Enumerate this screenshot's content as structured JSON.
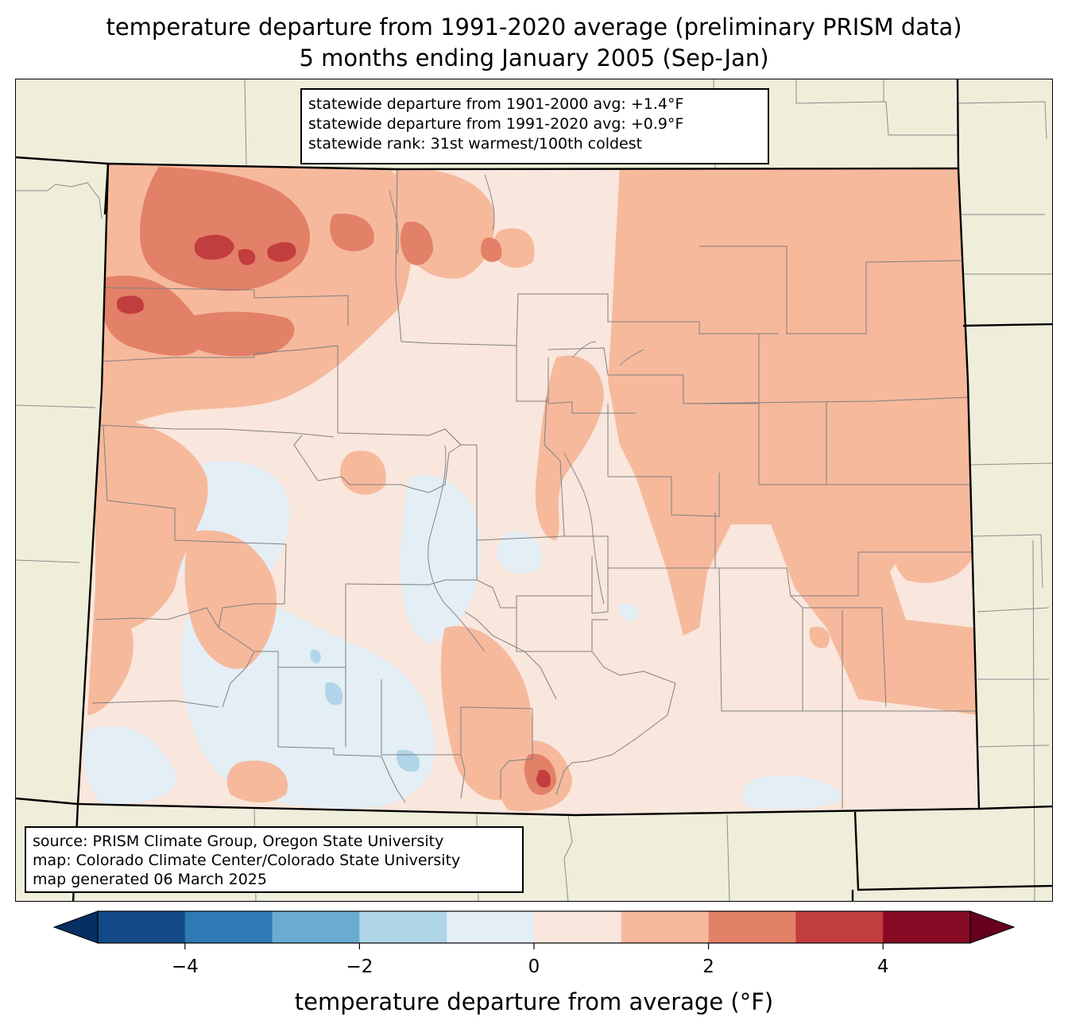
{
  "title": {
    "line1": "temperature departure from 1991-2020 average (preliminary PRISM data)",
    "line2": "5 months ending January 2005 (Sep-Jan)"
  },
  "stats": {
    "line1": "statewide departure from 1901-2000 avg: +1.4°F",
    "line2": "statewide departure from 1991-2020 avg: +0.9°F",
    "line3": "statewide rank: 31st warmest/100th coldest"
  },
  "source": {
    "line1": "source: PRISM Climate Group, Oregon State University",
    "line2": "map: Colorado Climate Center/Colorado State University",
    "line3": "map generated 06 March 2025"
  },
  "colors": {
    "land": "#efeedb",
    "state_base": "#f9e6dc",
    "county_lines": "#808080",
    "state_border": "#000000"
  },
  "colorbar": {
    "label": "temperature departure from average (°F)",
    "ticks": [
      "−4",
      "−2",
      "0",
      "2",
      "4"
    ],
    "bins": [
      {
        "from": -5,
        "to": -4,
        "color": "#144a87"
      },
      {
        "from": -4,
        "to": -3,
        "color": "#2f79b5"
      },
      {
        "from": -3,
        "to": -2,
        "color": "#6aacd0"
      },
      {
        "from": -2,
        "to": -1,
        "color": "#b0d5e8"
      },
      {
        "from": -1,
        "to": 0,
        "color": "#e4eef5"
      },
      {
        "from": 0,
        "to": 1,
        "color": "#f9e6dc"
      },
      {
        "from": 1,
        "to": 2,
        "color": "#f6b99c"
      },
      {
        "from": 2,
        "to": 3,
        "color": "#e38068"
      },
      {
        "from": 3,
        "to": 4,
        "color": "#c23d3e"
      },
      {
        "from": 4,
        "to": 5,
        "color": "#870a24"
      }
    ],
    "under_color": "#053061",
    "over_color": "#67001f"
  }
}
